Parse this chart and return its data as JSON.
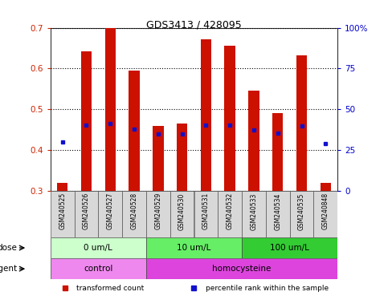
{
  "title": "GDS3413 / 428095",
  "samples": [
    "GSM240525",
    "GSM240526",
    "GSM240527",
    "GSM240528",
    "GSM240529",
    "GSM240530",
    "GSM240531",
    "GSM240532",
    "GSM240533",
    "GSM240534",
    "GSM240535",
    "GSM240848"
  ],
  "transformed_count": [
    0.32,
    0.643,
    0.7,
    0.595,
    0.46,
    0.465,
    0.672,
    0.655,
    0.545,
    0.49,
    0.632,
    0.32
  ],
  "percentile_rank_left": [
    0.42,
    0.462,
    0.465,
    0.452,
    0.44,
    0.44,
    0.462,
    0.462,
    0.45,
    0.442,
    0.46,
    0.415
  ],
  "bar_bottom": 0.3,
  "ylim_left": [
    0.3,
    0.7
  ],
  "ylim_right": [
    0,
    100
  ],
  "yticks_left": [
    0.3,
    0.4,
    0.5,
    0.6,
    0.7
  ],
  "yticks_right": [
    0,
    25,
    50,
    75,
    100
  ],
  "ytick_labels_right": [
    "0",
    "25",
    "50",
    "75",
    "100%"
  ],
  "bar_color": "#cc1100",
  "dot_color": "#1111cc",
  "dose_groups": [
    {
      "label": "0 um/L",
      "start": 0,
      "end": 4,
      "color": "#ccffcc"
    },
    {
      "label": "10 um/L",
      "start": 4,
      "end": 8,
      "color": "#66ee66"
    },
    {
      "label": "100 um/L",
      "start": 8,
      "end": 12,
      "color": "#33cc33"
    }
  ],
  "agent_groups": [
    {
      "label": "control",
      "start": 0,
      "end": 4,
      "color": "#ee88ee"
    },
    {
      "label": "homocysteine",
      "start": 4,
      "end": 12,
      "color": "#dd44dd"
    }
  ],
  "dose_label": "dose",
  "agent_label": "agent",
  "legend_items": [
    {
      "color": "#cc1100",
      "label": "transformed count"
    },
    {
      "color": "#1111cc",
      "label": "percentile rank within the sample"
    }
  ],
  "tick_color_left": "#cc2200",
  "tick_color_right": "#0000cc",
  "bg_color": "#ffffff",
  "plot_bg_color": "#ffffff",
  "label_bg_color": "#d8d8d8",
  "spine_color": "#333333"
}
